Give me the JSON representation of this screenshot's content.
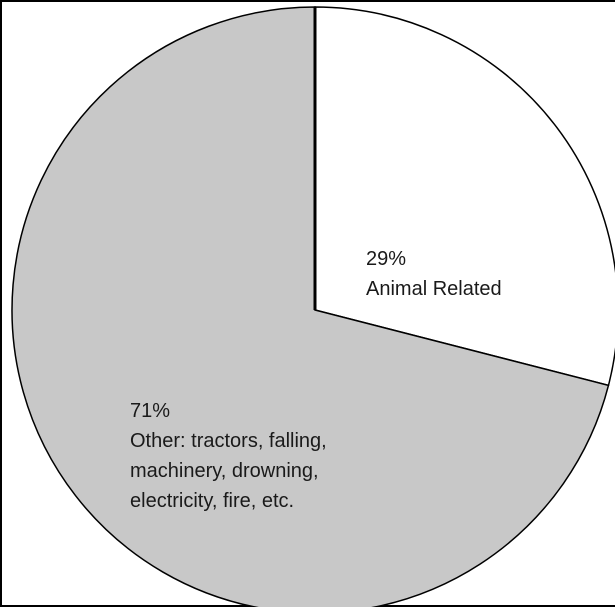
{
  "chart_data": {
    "type": "pie",
    "title": "",
    "slices": [
      {
        "value": 29,
        "percent_label": "29%",
        "label_lines": [
          "Animal Related"
        ],
        "color": "#ffffff"
      },
      {
        "value": 71,
        "percent_label": "71%",
        "label_lines": [
          "Other: tractors, falling,",
          "machinery, drowning,",
          "electricity, fire, etc."
        ],
        "color": "#c8c8c8"
      }
    ],
    "start_angle_deg": 0,
    "direction": "clockwise",
    "outline_color": "#000000"
  }
}
